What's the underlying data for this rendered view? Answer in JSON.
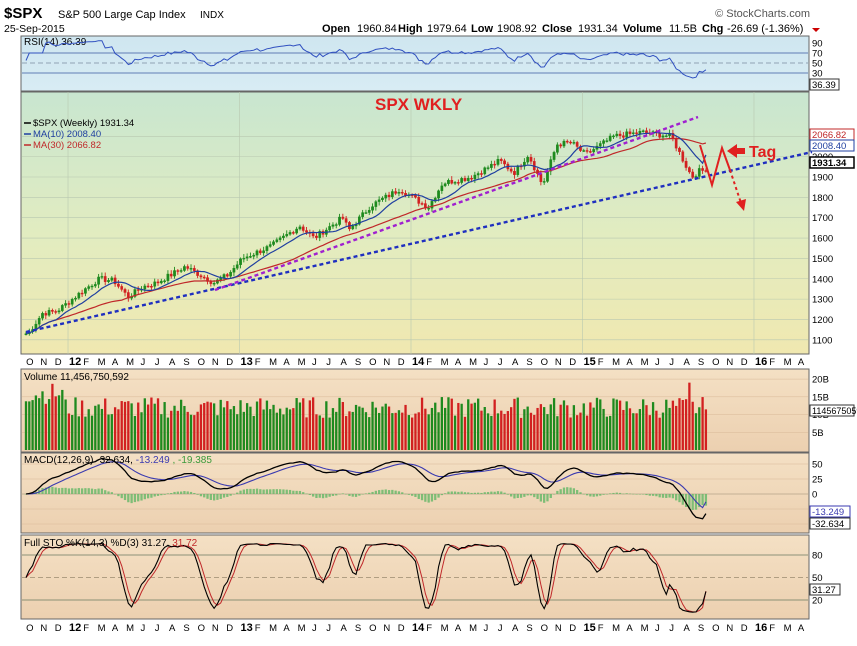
{
  "header": {
    "symbol": "$SPX",
    "name": "S&P 500 Large Cap Index",
    "exchange": "INDX",
    "date": "25-Sep-2015",
    "brand": "© StockCharts.com",
    "open_label": "Open",
    "open": "1960.84",
    "high_label": "High",
    "high": "1979.64",
    "low_label": "Low",
    "low": "1908.92",
    "close_label": "Close",
    "close": "1931.34",
    "volume_label": "Volume",
    "volume": "11.5B",
    "chg_label": "Chg",
    "chg": "-26.69 (-1.36%)"
  },
  "annotations": {
    "title": "SPX WKLY",
    "tag": "Tag"
  },
  "x_axis": {
    "ticks": [
      "O",
      "N",
      "D",
      "12",
      "F",
      "M",
      "A",
      "M",
      "J",
      "J",
      "A",
      "S",
      "O",
      "N",
      "D",
      "13",
      "F",
      "M",
      "A",
      "M",
      "J",
      "J",
      "A",
      "S",
      "O",
      "N",
      "D",
      "14",
      "F",
      "M",
      "A",
      "M",
      "J",
      "J",
      "A",
      "S",
      "O",
      "N",
      "D",
      "15",
      "F",
      "M",
      "A",
      "M",
      "J",
      "J",
      "A",
      "S",
      "O",
      "N",
      "D",
      "16",
      "F",
      "M",
      "A"
    ],
    "bold": [
      "12",
      "13",
      "14",
      "15",
      "16"
    ]
  },
  "rsi_panel": {
    "label": "RSI(14) 36.39",
    "ticks": [
      "90",
      "70",
      "50",
      "30",
      "10"
    ],
    "value_badge": "36.39"
  },
  "price_panel": {
    "legend": [
      {
        "text": "$SPX (Weekly) 1931.34",
        "color": "#000000"
      },
      {
        "text": "MA(10) 2008.40",
        "color": "#1f3fa0"
      },
      {
        "text": "MA(30) 2066.82",
        "color": "#c0282a"
      }
    ],
    "ticks": [
      "2100",
      "2000",
      "1900",
      "1800",
      "1700",
      "1600",
      "1500",
      "1400",
      "1300",
      "1200",
      "1100"
    ],
    "badges": [
      {
        "text": "2066.82",
        "color": "#c0282a"
      },
      {
        "text": "2008.40",
        "color": "#1f3fa0"
      },
      {
        "text": "1931.34",
        "color": "#000000"
      }
    ]
  },
  "volume_panel": {
    "label": "Volume 11,456,750,592",
    "ticks": [
      "20B",
      "15B",
      "10B",
      "5B"
    ],
    "value_badge": "11456750592"
  },
  "macd_panel": {
    "label_parts": [
      {
        "text": "MACD(12,26,9) -32.634,",
        "color": "#000000"
      },
      {
        "text": "-13.249",
        "color": "#3a3ab0"
      },
      {
        "text": ", -19.385",
        "color": "#3a9a3a"
      }
    ],
    "ticks": [
      "50",
      "25",
      "0",
      "-25",
      "-50"
    ],
    "badges": [
      "-13.249",
      "-32.634"
    ]
  },
  "sto_panel": {
    "label_parts": [
      {
        "text": "Full STO %K(14,3) %D(3) 31.27,",
        "color": "#000000"
      },
      {
        "text": "31.72",
        "color": "#c0282a"
      }
    ],
    "ticks": [
      "80",
      "50",
      "20"
    ],
    "value_badge": "31.27"
  },
  "colors": {
    "up": "#1e8a1e",
    "down": "#d22020",
    "ma10": "#1f3fa0",
    "ma30": "#c0282a",
    "trend_blue": "#1f2fc0",
    "trend_purple": "#a020d0",
    "annotation_red": "#e02020"
  },
  "chart_data": {
    "type": "line",
    "title": "SPX WKLY",
    "interval": "weekly",
    "x_range": [
      "2011-10",
      "2016-04"
    ],
    "price_anchors": [
      {
        "date": "2011-10",
        "value": 1130
      },
      {
        "date": "2011-11",
        "value": 1230
      },
      {
        "date": "2011-12",
        "value": 1240
      },
      {
        "date": "2012-02",
        "value": 1350
      },
      {
        "date": "2012-03",
        "value": 1400
      },
      {
        "date": "2012-04",
        "value": 1390
      },
      {
        "date": "2012-05",
        "value": 1310
      },
      {
        "date": "2012-06",
        "value": 1360
      },
      {
        "date": "2012-07",
        "value": 1380
      },
      {
        "date": "2012-09",
        "value": 1460
      },
      {
        "date": "2012-11",
        "value": 1380
      },
      {
        "date": "2012-12",
        "value": 1420
      },
      {
        "date": "2013-01",
        "value": 1500
      },
      {
        "date": "2013-03",
        "value": 1560
      },
      {
        "date": "2013-05",
        "value": 1660
      },
      {
        "date": "2013-06",
        "value": 1600
      },
      {
        "date": "2013-08",
        "value": 1700
      },
      {
        "date": "2013-08-late",
        "value": 1640
      },
      {
        "date": "2013-10",
        "value": 1760
      },
      {
        "date": "2013-12",
        "value": 1840
      },
      {
        "date": "2014-02",
        "value": 1750
      },
      {
        "date": "2014-03",
        "value": 1870
      },
      {
        "date": "2014-05",
        "value": 1900
      },
      {
        "date": "2014-07",
        "value": 1980
      },
      {
        "date": "2014-08",
        "value": 1920
      },
      {
        "date": "2014-09",
        "value": 2010
      },
      {
        "date": "2014-10",
        "value": 1860
      },
      {
        "date": "2014-11",
        "value": 2060
      },
      {
        "date": "2014-12",
        "value": 2070
      },
      {
        "date": "2015-01",
        "value": 2010
      },
      {
        "date": "2015-03",
        "value": 2100
      },
      {
        "date": "2015-05",
        "value": 2120
      },
      {
        "date": "2015-07",
        "value": 2100
      },
      {
        "date": "2015-08",
        "value": 1960
      },
      {
        "date": "2015-08-late",
        "value": 1900
      },
      {
        "date": "2015-09",
        "value": 1931.34
      }
    ],
    "ma10_last": 2008.4,
    "ma30_last": 2066.82,
    "last_close": 1931.34,
    "y_range": [
      1050,
      2180
    ],
    "rsi_range": [
      0,
      100
    ],
    "volume_range_billions": [
      0,
      22
    ],
    "macd_range": [
      -60,
      60
    ],
    "sto_range": [
      0,
      100
    ],
    "rsi_last": 36.39,
    "macd_last": -32.634,
    "macd_signal_last": -13.249,
    "macd_hist_last": -19.385,
    "sto_k_last": 31.27,
    "sto_d_last": 31.72,
    "volume_last": 11456750592
  }
}
